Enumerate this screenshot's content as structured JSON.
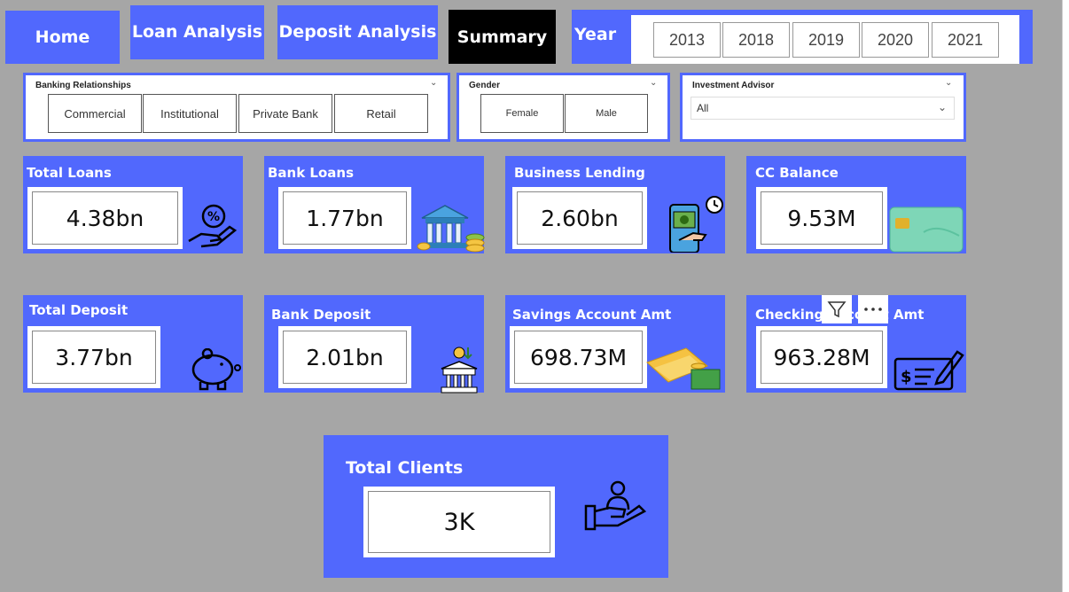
{
  "nav": {
    "home": "Home",
    "loan": "Loan Analysis",
    "deposit": "Deposit Analysis",
    "summary": "Summary"
  },
  "year": {
    "label": "Year",
    "options": [
      "2013",
      "2018",
      "2019",
      "2020",
      "2021"
    ]
  },
  "slicers": {
    "banking": {
      "title": "Banking Relationships",
      "options": [
        "Commercial",
        "Institutional",
        "Private Bank",
        "Retail"
      ]
    },
    "gender": {
      "title": "Gender",
      "options": [
        "Female",
        "Male"
      ]
    },
    "advisor": {
      "title": "Investment Advisor",
      "value": "All"
    }
  },
  "cards": {
    "total_loans": {
      "title": "Total Loans",
      "value": "4.38bn",
      "icon": "percent-hand-icon"
    },
    "bank_loans": {
      "title": "Bank Loans",
      "value": "1.77bn",
      "icon": "bank-coins-icon"
    },
    "business_lending": {
      "title": "Business Lending",
      "value": "2.60bn",
      "icon": "phone-cash-icon"
    },
    "cc_balance": {
      "title": "CC Balance",
      "value": "9.53M",
      "icon": "credit-card-icon"
    },
    "total_deposit": {
      "title": "Total Deposit",
      "value": "3.77bn",
      "icon": "piggy-bank-icon"
    },
    "bank_deposit": {
      "title": "Bank Deposit",
      "value": "2.01bn",
      "icon": "bank-building-icon"
    },
    "savings": {
      "title": "Savings Account Amt",
      "value": "698.73M",
      "icon": "money-stack-icon"
    },
    "checking": {
      "title": "Checking Account Amt",
      "value": "963.28M",
      "icon": "cheque-icon"
    },
    "clients": {
      "title": "Total Clients",
      "value": "3K",
      "icon": "client-hand-icon"
    }
  },
  "colors": {
    "accent": "#5168fd",
    "background": "#a6a6a6",
    "active": "#000000"
  }
}
